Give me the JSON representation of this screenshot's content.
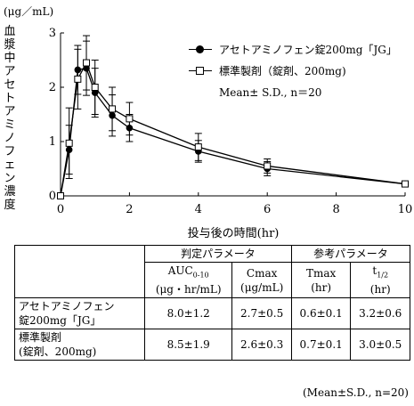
{
  "chart_data": {
    "type": "line",
    "unit_label": "(μg／mL)",
    "ylabel": "血漿中アセトアミノフェン濃度",
    "xlabel": "投与後の時間(hr)",
    "xlim": [
      0,
      10
    ],
    "ylim": [
      0,
      3
    ],
    "x_ticks": [
      "0",
      "2",
      "4",
      "6",
      "8",
      "10"
    ],
    "y_ticks": [
      "0",
      "1",
      "2",
      "3"
    ],
    "series": [
      {
        "name": "アセトアミノフェン錠200mg「JG」",
        "marker": "filled-circle",
        "x": [
          0,
          0.25,
          0.5,
          0.75,
          1,
          1.5,
          2,
          4,
          6,
          10
        ],
        "y": [
          0,
          0.85,
          2.32,
          2.35,
          1.9,
          1.48,
          1.25,
          0.82,
          0.5,
          0.22
        ],
        "sd": [
          0,
          0.45,
          0.45,
          0.5,
          0.45,
          0.38,
          0.25,
          0.2,
          0.13,
          0.04
        ]
      },
      {
        "name": "標準製剤（錠剤、200mg)",
        "marker": "open-square",
        "x": [
          0,
          0.25,
          0.5,
          0.75,
          1,
          1.5,
          2,
          4,
          6,
          10
        ],
        "y": [
          0,
          0.97,
          2.15,
          2.45,
          2.0,
          1.6,
          1.42,
          0.9,
          0.55,
          0.22
        ],
        "sd": [
          0,
          0.65,
          0.55,
          0.5,
          0.5,
          0.4,
          0.3,
          0.25,
          0.13,
          0.04
        ]
      }
    ],
    "legend_stats": "Mean± S.D., n＝20",
    "legend_position": "top-right"
  },
  "table": {
    "group_headers": [
      "判定パラメータ",
      "参考パラメータ"
    ],
    "columns": [
      {
        "name": "AUC",
        "sub": "0-10",
        "unit": "(μg・hr/mL)"
      },
      {
        "name": "Cmax",
        "sub": "",
        "unit": "(μg/mL)"
      },
      {
        "name": "Tmax",
        "sub": "",
        "unit": "(hr)"
      },
      {
        "name": "t",
        "sub": "1/2",
        "unit": "(hr)"
      }
    ],
    "rows": [
      {
        "name_line1": "アセトアミノフェン",
        "name_line2": "錠200mg「JG」",
        "values": [
          "8.0±1.2",
          "2.7±0.5",
          "0.6±0.1",
          "3.2±0.6"
        ]
      },
      {
        "name_line1": "標準製剤",
        "name_line2": "(錠剤、200mg)",
        "values": [
          "8.5±1.9",
          "2.6±0.3",
          "0.7±0.1",
          "3.0±0.5"
        ]
      }
    ],
    "footnote": "(Mean±S.D., n=20)"
  }
}
